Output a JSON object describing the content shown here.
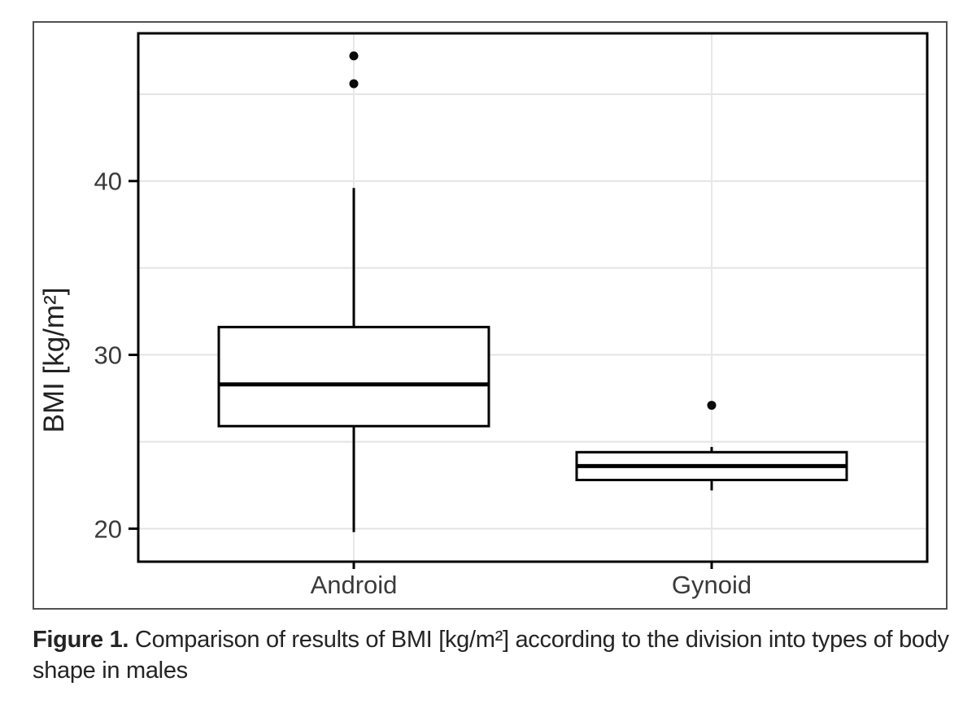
{
  "figure": {
    "caption_label": "Figure 1. ",
    "caption_text": "Comparison of results of BMI [kg/m²] according to the division into types of body shape in males"
  },
  "chart_data": {
    "type": "boxplot",
    "title": "",
    "xlabel": "",
    "ylabel": "BMI [kg/m²]",
    "categories": [
      "Android",
      "Gynoid"
    ],
    "yticks": [
      20,
      30,
      40
    ],
    "gridlines_y": [
      20,
      25,
      30,
      35,
      40,
      45
    ],
    "ylim": [
      18.1,
      48.5
    ],
    "grid": true,
    "legend": "none",
    "series": [
      {
        "name": "Android",
        "whisker_low": 19.8,
        "q1": 25.9,
        "median": 28.3,
        "q3": 31.6,
        "whisker_high": 39.6,
        "outliers": [
          45.6,
          47.2
        ]
      },
      {
        "name": "Gynoid",
        "whisker_low": 22.2,
        "q1": 22.8,
        "median": 23.6,
        "q3": 24.4,
        "whisker_high": 24.7,
        "outliers": [
          27.1
        ]
      }
    ],
    "colors": {
      "box_fill": "#ffffff",
      "box_stroke": "#000000",
      "median": "#000000",
      "outlier": "#0a0a0a",
      "gridline": "#e3e3e3",
      "v_gridline": "#e8e8e8",
      "panel_border": "#000000",
      "tick": "#000000",
      "frame_border": "#505050",
      "tick_text": "#3a3a3a",
      "axis_title": "#222222"
    }
  }
}
